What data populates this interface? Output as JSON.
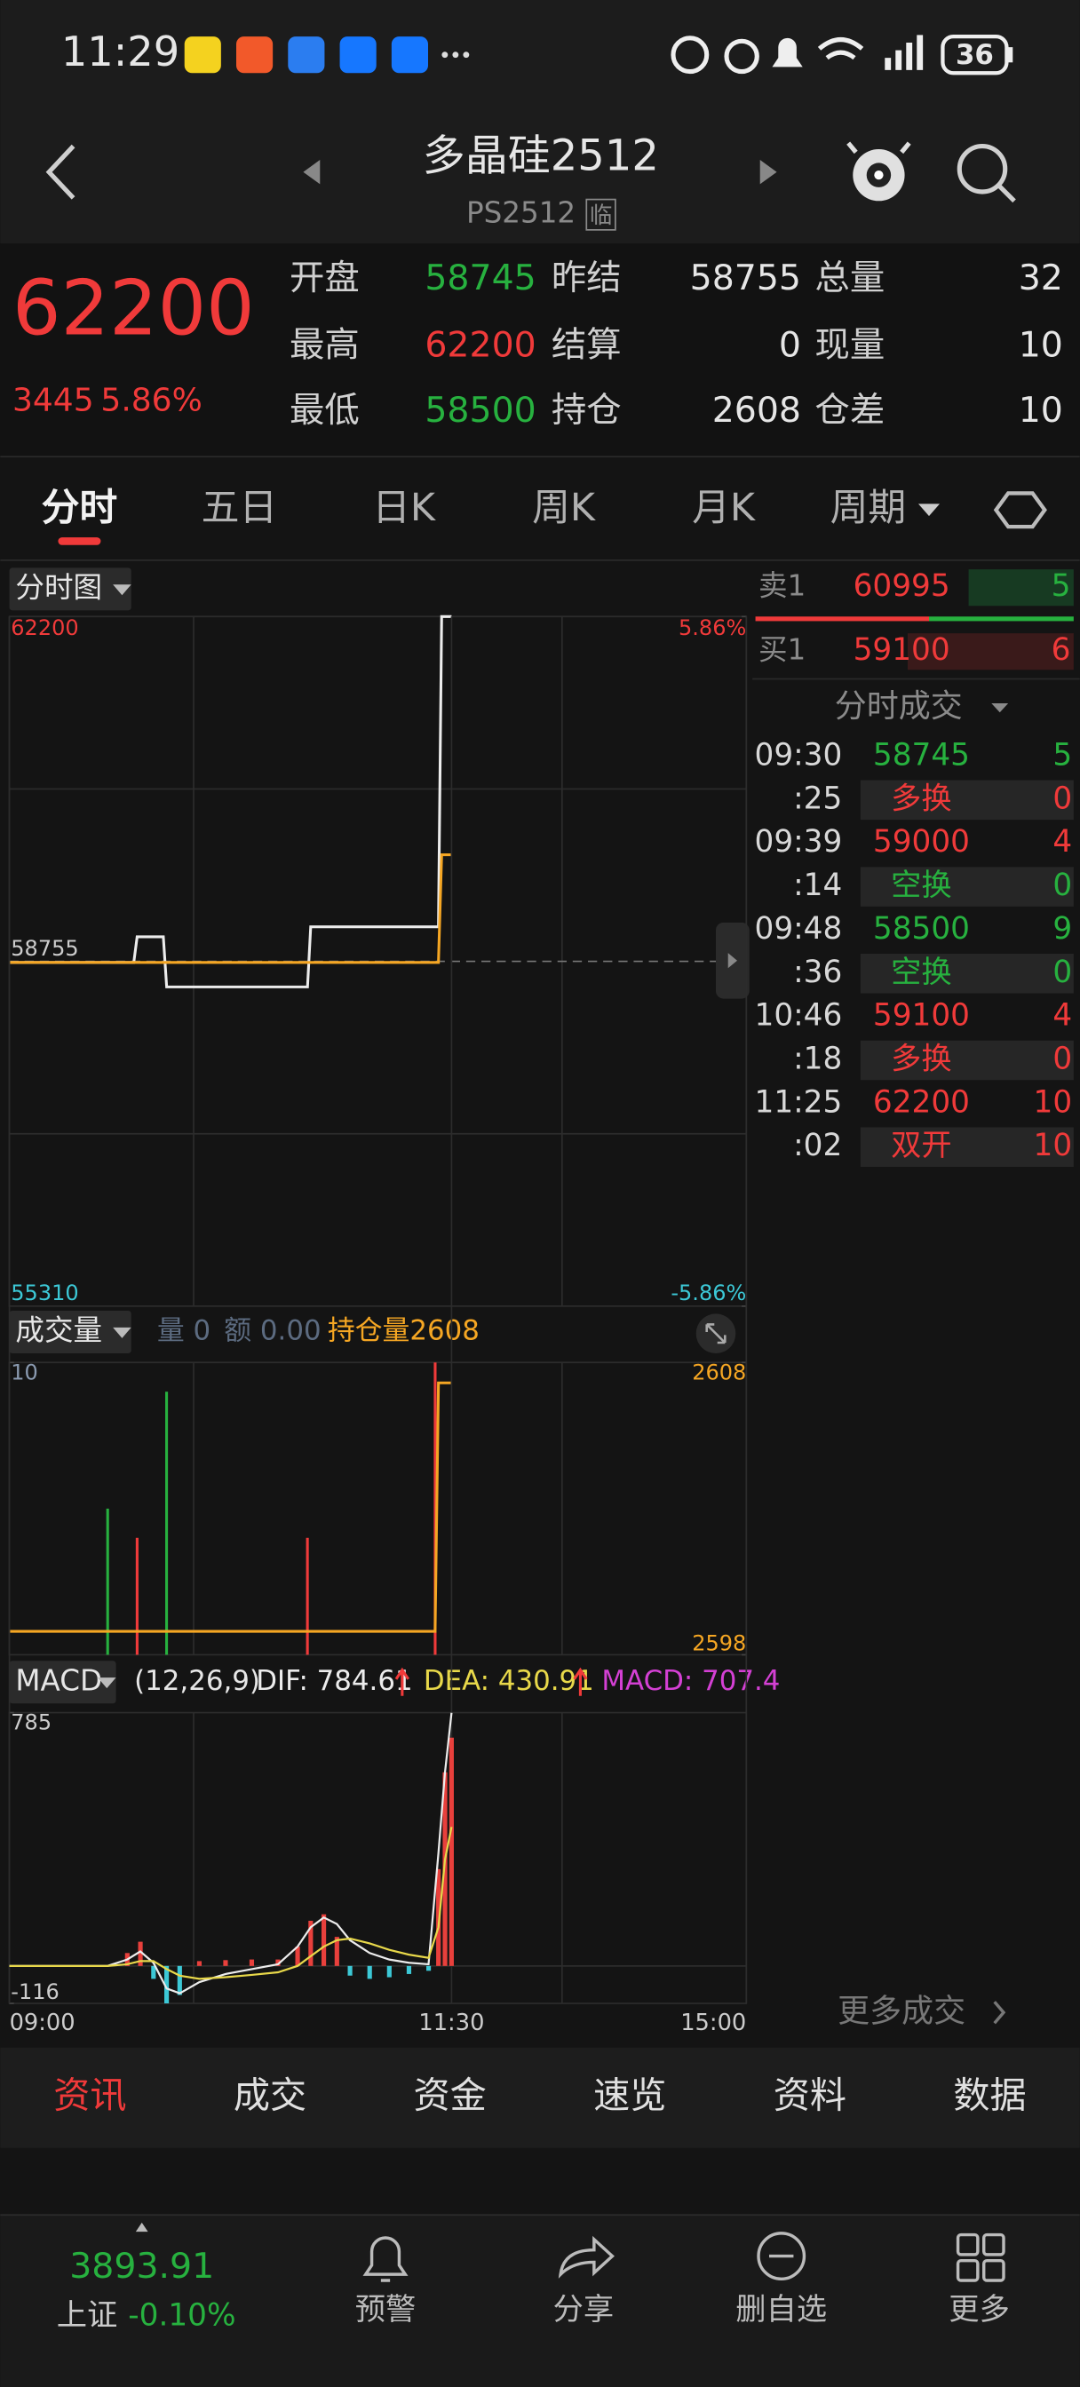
{
  "status_bar": {
    "time": "11:29",
    "battery": "36"
  },
  "header": {
    "title": "多晶硅2512",
    "subtitle": "PS2512",
    "badge": "临"
  },
  "quote": {
    "price": "62200",
    "change": "3445",
    "change_pct": "5.86%",
    "fields": [
      {
        "label": "开盘",
        "value": 58745,
        "color": "#27b13f"
      },
      {
        "label": "昨结",
        "value": 58755,
        "color": "#e6e6e6"
      },
      {
        "label": "总量",
        "value": 32,
        "color": "#e6e6e6"
      },
      {
        "label": "最高",
        "value": 62200,
        "color": "#f03a3a"
      },
      {
        "label": "结算",
        "value": 0,
        "color": "#e6e6e6"
      },
      {
        "label": "现量",
        "value": 10,
        "color": "#e6e6e6"
      },
      {
        "label": "最低",
        "value": 58500,
        "color": "#27b13f"
      },
      {
        "label": "持仓",
        "value": 2608,
        "color": "#e6e6e6"
      },
      {
        "label": "仓差",
        "value": 10,
        "color": "#e6e6e6"
      }
    ]
  },
  "tabs": [
    "分时",
    "五日",
    "日K",
    "周K",
    "月K",
    "周期"
  ],
  "order_book": {
    "sell": {
      "label": "卖1",
      "price": 60995,
      "volume": 5
    },
    "buy": {
      "label": "买1",
      "price": 59100,
      "volume": 6
    }
  },
  "trades": {
    "title": "分时成交",
    "more": "更多成交",
    "rows": [
      {
        "time": "09:30",
        "price": 58745,
        "volume": 5,
        "color": "#27b13f"
      },
      {
        "time": ":25",
        "price": "多换",
        "volume": 0,
        "color": "#f03a3a"
      },
      {
        "time": "09:39",
        "price": 59000,
        "volume": 4,
        "color": "#f03a3a"
      },
      {
        "time": ":14",
        "price": "空换",
        "volume": 0,
        "color": "#27b13f"
      },
      {
        "time": "09:48",
        "price": 58500,
        "volume": 9,
        "color": "#27b13f"
      },
      {
        "time": ":36",
        "price": "空换",
        "volume": 0,
        "color": "#27b13f"
      },
      {
        "time": "10:46",
        "price": 59100,
        "volume": 4,
        "color": "#f03a3a"
      },
      {
        "time": ":18",
        "price": "多换",
        "volume": 0,
        "color": "#f03a3a"
      },
      {
        "time": "11:25",
        "price": 62200,
        "volume": 10,
        "color": "#f03a3a"
      },
      {
        "time": ":02",
        "price": "双开",
        "volume": 10,
        "color": "#f03a3a"
      }
    ]
  },
  "chart_data": [
    {
      "type": "line",
      "title": "分时图",
      "xlim": [
        0,
        225
      ],
      "x": [
        0,
        38,
        39,
        47,
        48,
        91,
        92,
        131,
        132,
        135
      ],
      "series": [
        {
          "color": "#ececec",
          "values": [
            58745,
            58745,
            59000,
            59000,
            58500,
            58500,
            59100,
            59100,
            62200,
            62200
          ]
        },
        {
          "color": "#f5a623",
          "values": [
            58745,
            58745,
            58745,
            58745,
            58745,
            58745,
            58745,
            58745,
            59820,
            59820
          ]
        }
      ],
      "ylim": [
        55310,
        62200
      ],
      "yticks": [
        62200,
        58755,
        55310
      ],
      "y2lim": [
        -5.86,
        5.86
      ],
      "y2ticks": [
        {
          "value": 5.86,
          "label": "5.86%"
        },
        {
          "value": -5.86,
          "label": "-5.86%"
        }
      ]
    },
    {
      "type": "bar",
      "title": "成交量",
      "legend": [
        "量 0",
        "额 0.00",
        "持仓量2608"
      ],
      "xlim": [
        0,
        225
      ],
      "x": [
        30,
        39,
        48,
        91,
        130
      ],
      "values": [
        5,
        4,
        9,
        4,
        10
      ],
      "colors": [
        "#27b13f",
        "#f03a3a",
        "#27b13f",
        "#f03a3a",
        "#f03a3a"
      ],
      "ylim": [
        0,
        10
      ],
      "yticks": [
        10
      ],
      "series": [
        {
          "axis": "y2",
          "color": "#f5a623",
          "x": [
            0,
            130,
            131,
            135
          ],
          "values": [
            2598.8,
            2598.8,
            2607.3,
            2607.3
          ]
        }
      ],
      "y2lim": [
        2598,
        2608
      ],
      "y2ticks": [
        2608,
        2598
      ]
    },
    {
      "type": "macd",
      "title": "MACD",
      "params": "(12,26,9)",
      "legend": [
        {
          "label": "DIF: 784.61",
          "color": "#ececec"
        },
        {
          "label": "DEA: 430.91",
          "color": "#e8d84a"
        },
        {
          "label": "MACD: 707.4",
          "color": "#d440d4"
        }
      ],
      "xlim": [
        0,
        225
      ],
      "xticks": [
        {
          "value": 0,
          "label": "09:00"
        },
        {
          "value": 135,
          "label": "11:30"
        },
        {
          "value": 225,
          "label": "15:00"
        }
      ],
      "x": [
        0,
        30,
        36,
        40,
        44,
        48,
        52,
        58,
        66,
        74,
        82,
        88,
        92,
        96,
        100,
        104,
        110,
        116,
        122,
        128,
        131,
        133,
        135
      ],
      "series": [
        {
          "type": "bar",
          "color": "#e8403c",
          "negative_color": "#3cc8d6",
          "values": [
            0,
            0,
            40,
            75,
            -40,
            -116,
            -90,
            15,
            18,
            20,
            20,
            60,
            140,
            160,
            90,
            -30,
            -40,
            -35,
            -25,
            -15,
            300,
            600,
            707.4
          ]
        },
        {
          "type": "line",
          "color": "#ececec",
          "values": [
            0,
            0,
            20,
            45,
            10,
            -70,
            -85,
            -50,
            -25,
            -10,
            5,
            60,
            120,
            150,
            130,
            80,
            40,
            20,
            10,
            5,
            350,
            600,
            784.61
          ]
        },
        {
          "type": "line",
          "color": "#e8d84a",
          "values": [
            0,
            0,
            5,
            15,
            15,
            -10,
            -30,
            -40,
            -35,
            -28,
            -20,
            0,
            30,
            60,
            80,
            85,
            70,
            50,
            35,
            25,
            120,
            330,
            430.91
          ]
        }
      ],
      "ylim": [
        -116,
        785
      ],
      "yticks": [
        785,
        -116
      ]
    }
  ],
  "bottom_tabs": [
    "资讯",
    "成交",
    "资金",
    "速览",
    "资料",
    "数据"
  ],
  "index": {
    "value": "3893.91",
    "name": "上证",
    "change_pct": "-0.10%"
  },
  "nav": [
    "预警",
    "分享",
    "删自选",
    "更多"
  ]
}
